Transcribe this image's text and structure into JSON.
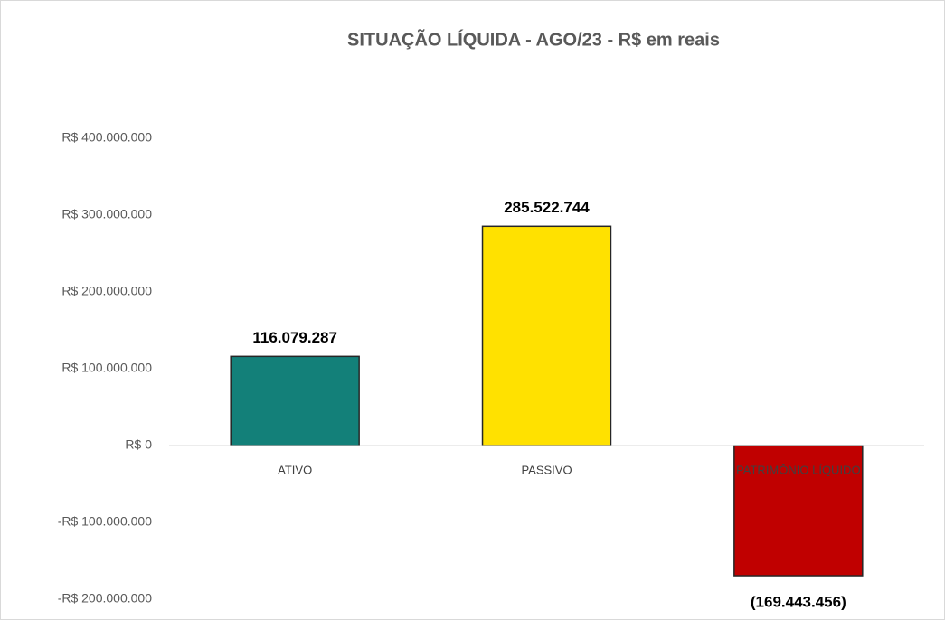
{
  "chart_data": {
    "type": "bar",
    "title": "SITUAÇÃO LÍQUIDA -  AGO/23 - R$ em reais",
    "categories": [
      "ATIVO",
      "PASSIVO",
      "PATRIMÔNIO LÍQUIDO"
    ],
    "values": [
      116079287,
      285522744,
      -169443456
    ],
    "value_labels": [
      "116.079.287",
      "285.522.744",
      "(169.443.456)"
    ],
    "colors": [
      "#138079",
      "#ffe100",
      "#c00000"
    ],
    "ylim": [
      -200000000,
      400000000
    ],
    "yticks": [
      {
        "value": -200000000,
        "label": "-R$ 200.000.000"
      },
      {
        "value": -100000000,
        "label": "-R$ 100.000.000"
      },
      {
        "value": 0,
        "label": "R$ 0"
      },
      {
        "value": 100000000,
        "label": "R$ 100.000.000"
      },
      {
        "value": 200000000,
        "label": "R$ 200.000.000"
      },
      {
        "value": 300000000,
        "label": "R$ 300.000.000"
      },
      {
        "value": 400000000,
        "label": "R$ 400.000.000"
      }
    ],
    "grid": false
  }
}
